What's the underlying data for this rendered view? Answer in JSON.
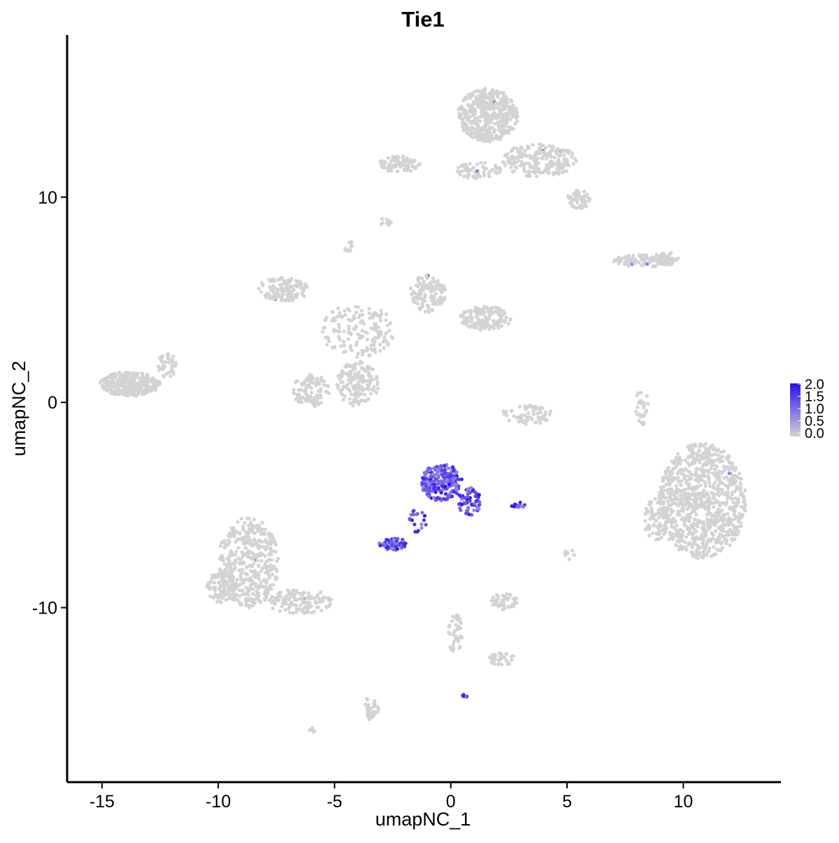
{
  "chart_data": {
    "type": "scatter",
    "title": "Tie1",
    "xlabel": "umapNC_1",
    "ylabel": "umapNC_2",
    "xlim": [
      -16.5,
      14.2
    ],
    "ylim": [
      -18.5,
      17.9
    ],
    "x_ticks": [
      -15,
      -10,
      -5,
      0,
      5,
      10
    ],
    "x_tick_labels": [
      "-15",
      "-10",
      "-5",
      "0",
      "5",
      "10"
    ],
    "y_ticks": [
      -10,
      0,
      10
    ],
    "y_tick_labels": [
      "-10",
      "0",
      "10"
    ],
    "grid": false,
    "legend": {
      "placement": "right",
      "type": "colorbar",
      "range": [
        0,
        2
      ],
      "labels": [
        "2.0",
        "1.5",
        "1.0",
        "0.5",
        "0.0"
      ],
      "low_color": "#d3d3d3",
      "high_color": "#2a10f0"
    },
    "clusters": [
      {
        "label": "top-north",
        "cx": 1.6,
        "cy": 14.0,
        "rx": 1.3,
        "ry": 1.3,
        "n": 450
      },
      {
        "label": "top-north-tail",
        "cx": 3.8,
        "cy": 11.8,
        "rx": 1.6,
        "ry": 0.8,
        "n": 220
      },
      {
        "label": "top-north-east",
        "cx": 5.5,
        "cy": 9.9,
        "rx": 0.5,
        "ry": 0.5,
        "n": 60
      },
      {
        "label": "top-north-arm",
        "cx": 1.2,
        "cy": 11.3,
        "rx": 1.0,
        "ry": 0.4,
        "n": 60
      },
      {
        "label": "top-west-strip",
        "cx": -2.2,
        "cy": 11.6,
        "rx": 0.9,
        "ry": 0.4,
        "n": 90
      },
      {
        "label": "upper-mid-west",
        "cx": -7.2,
        "cy": 5.5,
        "rx": 1.1,
        "ry": 0.6,
        "n": 120
      },
      {
        "label": "upper-mid-center",
        "cx": -1.0,
        "cy": 5.3,
        "rx": 0.8,
        "ry": 0.9,
        "n": 120
      },
      {
        "label": "upper-mid-east",
        "cx": 1.5,
        "cy": 4.1,
        "rx": 1.1,
        "ry": 0.6,
        "n": 150
      },
      {
        "label": "upper-mid-stem",
        "cx": -4.0,
        "cy": 3.5,
        "rx": 1.6,
        "ry": 1.3,
        "n": 160
      },
      {
        "label": "lower-left-lobe",
        "cx": -6.0,
        "cy": 0.6,
        "rx": 0.8,
        "ry": 0.8,
        "n": 110
      },
      {
        "label": "lower-right-lobe",
        "cx": -4.0,
        "cy": 0.9,
        "rx": 0.9,
        "ry": 1.1,
        "n": 160
      },
      {
        "label": "far-west",
        "cx": -13.8,
        "cy": 0.9,
        "rx": 1.3,
        "ry": 0.6,
        "n": 300
      },
      {
        "label": "far-west-tail",
        "cx": -12.2,
        "cy": 1.8,
        "rx": 0.4,
        "ry": 0.6,
        "n": 40
      },
      {
        "label": "east-strip",
        "cx": 8.3,
        "cy": 6.9,
        "rx": 1.3,
        "ry": 0.3,
        "n": 90
      },
      {
        "label": "east-strip-end",
        "cx": 9.3,
        "cy": 7.0,
        "rx": 0.6,
        "ry": 0.3,
        "n": 50
      },
      {
        "label": "far-east",
        "cx": 10.8,
        "cy": -4.8,
        "rx": 1.9,
        "ry": 2.8,
        "n": 900
      },
      {
        "label": "far-east-left",
        "cx": 8.8,
        "cy": -5.7,
        "rx": 0.5,
        "ry": 1.1,
        "n": 60
      },
      {
        "label": "east-arc",
        "cx": 8.2,
        "cy": -0.2,
        "rx": 0.3,
        "ry": 0.9,
        "n": 30
      },
      {
        "label": "center-arc",
        "cx": 3.3,
        "cy": -0.6,
        "rx": 1.1,
        "ry": 0.5,
        "n": 70
      },
      {
        "label": "southwest",
        "cx": -8.7,
        "cy": -7.8,
        "rx": 1.3,
        "ry": 2.2,
        "n": 420
      },
      {
        "label": "southwest-left",
        "cx": -9.8,
        "cy": -9.0,
        "rx": 0.7,
        "ry": 0.8,
        "n": 110
      },
      {
        "label": "southwest-tail",
        "cx": -6.5,
        "cy": -9.7,
        "rx": 1.4,
        "ry": 0.6,
        "n": 130
      },
      {
        "label": "south-lower",
        "cx": 2.3,
        "cy": -9.7,
        "rx": 0.6,
        "ry": 0.4,
        "n": 50
      },
      {
        "label": "south-tail",
        "cx": 0.2,
        "cy": -11.3,
        "rx": 0.3,
        "ry": 1.0,
        "n": 40
      },
      {
        "label": "south-bottom",
        "cx": 2.2,
        "cy": -12.5,
        "rx": 0.6,
        "ry": 0.3,
        "n": 40
      },
      {
        "label": "south-island",
        "cx": -3.4,
        "cy": -14.8,
        "rx": 0.3,
        "ry": 0.7,
        "n": 40
      },
      {
        "label": "south-island-small",
        "cx": -6.0,
        "cy": -16.0,
        "rx": 0.15,
        "ry": 0.15,
        "n": 6
      },
      {
        "label": "small-north",
        "cx": -2.8,
        "cy": 8.8,
        "rx": 0.25,
        "ry": 0.2,
        "n": 10
      },
      {
        "label": "small-upper",
        "cx": -4.4,
        "cy": 7.6,
        "rx": 0.2,
        "ry": 0.3,
        "n": 12
      },
      {
        "label": "small-right",
        "cx": 5.1,
        "cy": -7.4,
        "rx": 0.25,
        "ry": 0.3,
        "n": 10
      },
      {
        "label": "endothelial-core",
        "cx": -0.4,
        "cy": -3.9,
        "rx": 0.9,
        "ry": 0.9,
        "n": 220,
        "high": true
      },
      {
        "label": "endothelial-right",
        "cx": 0.8,
        "cy": -4.8,
        "rx": 0.5,
        "ry": 0.7,
        "n": 60,
        "high": true
      },
      {
        "label": "endothelial-left",
        "cx": -2.5,
        "cy": -6.9,
        "rx": 0.6,
        "ry": 0.3,
        "n": 70,
        "high": true
      },
      {
        "label": "endothelial-bridge",
        "cx": -1.4,
        "cy": -5.8,
        "rx": 0.4,
        "ry": 0.6,
        "n": 20,
        "high": true
      },
      {
        "label": "endothelial-small",
        "cx": 2.9,
        "cy": -5.0,
        "rx": 0.3,
        "ry": 0.15,
        "n": 12,
        "high": true
      },
      {
        "label": "endothelial-island",
        "cx": 0.6,
        "cy": -14.3,
        "rx": 0.1,
        "ry": 0.1,
        "n": 6,
        "high": true
      }
    ]
  }
}
